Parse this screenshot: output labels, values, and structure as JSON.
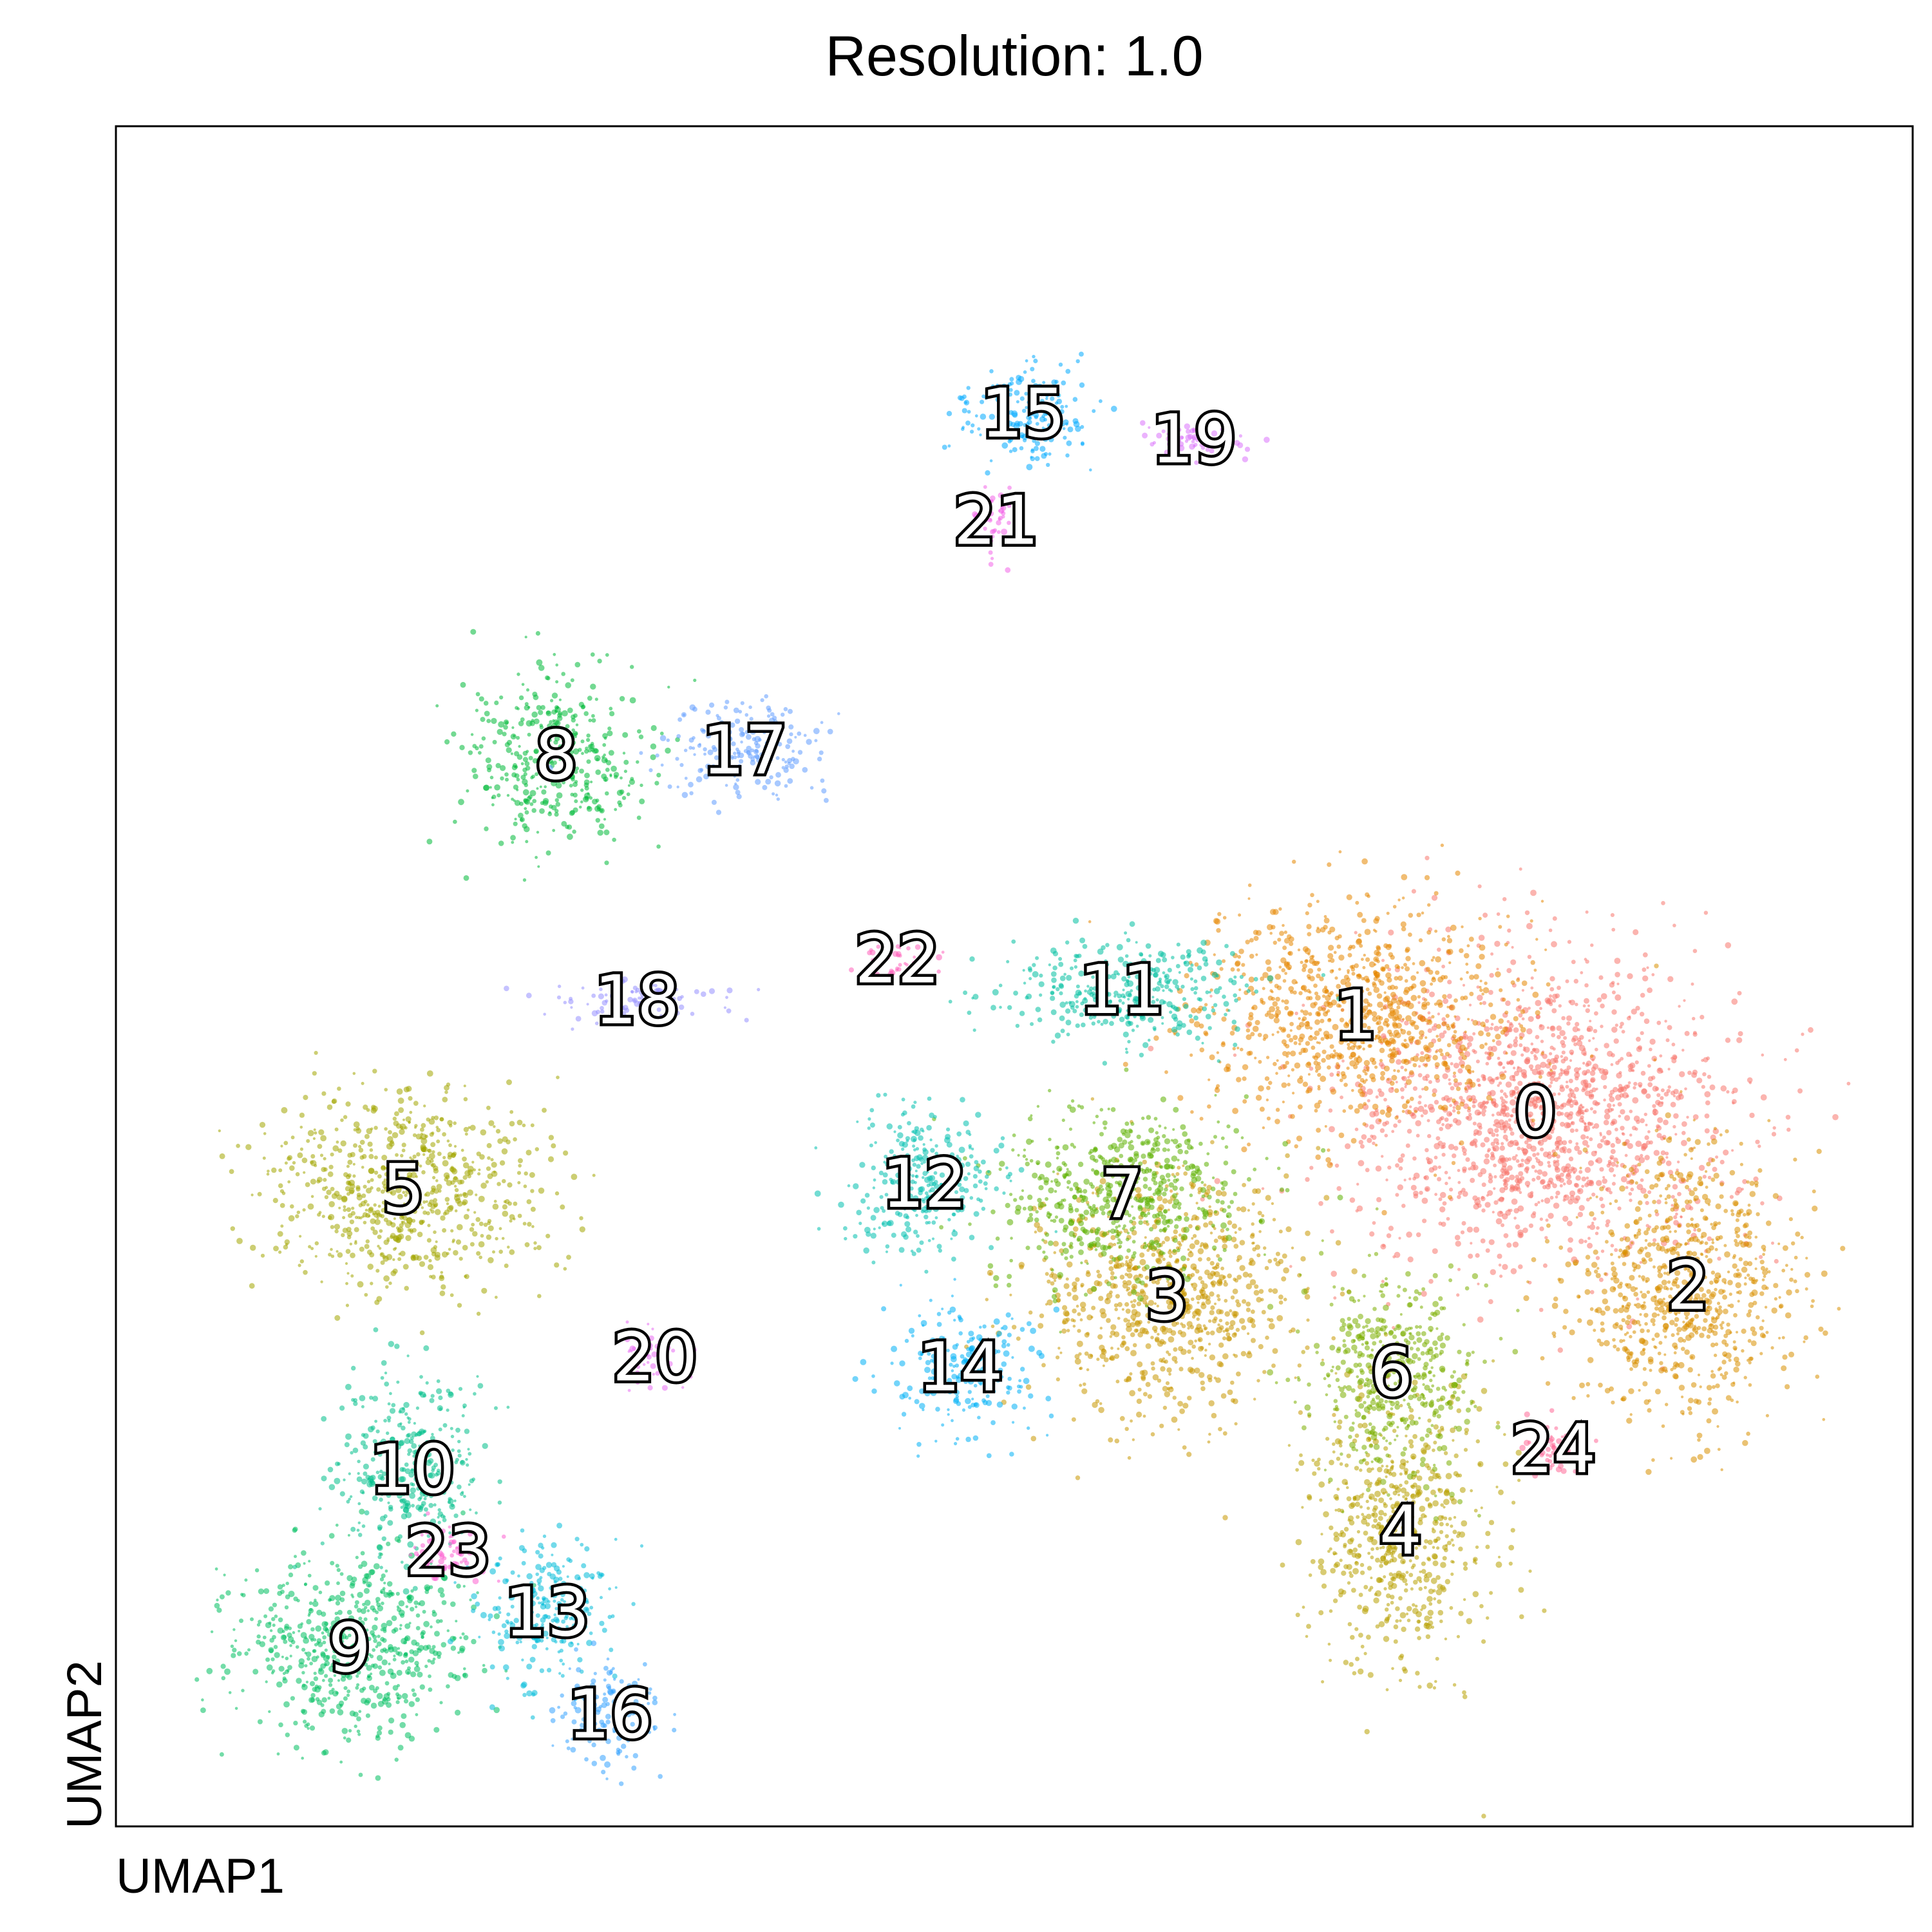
{
  "chart_data": {
    "type": "scatter",
    "title": "Resolution: 1.0",
    "xlabel": "UMAP1",
    "ylabel": "UMAP2",
    "xlim": [
      0,
      100
    ],
    "ylim": [
      0,
      100
    ],
    "grid": false,
    "legend": "on data",
    "clusters": [
      {
        "label": "0",
        "x": 79.0,
        "y": 70.0,
        "color": "#F8766D"
      },
      {
        "label": "1",
        "x": 69.0,
        "y": 79.5,
        "color": "#E58700"
      },
      {
        "label": "2",
        "x": 87.5,
        "y": 53.0,
        "color": "#D89000"
      },
      {
        "label": "3",
        "x": 58.5,
        "y": 52.0,
        "color": "#C99800"
      },
      {
        "label": "4",
        "x": 71.5,
        "y": 29.0,
        "color": "#B8A000"
      },
      {
        "label": "5",
        "x": 16.0,
        "y": 62.5,
        "color": "#A3A500"
      },
      {
        "label": "6",
        "x": 71.0,
        "y": 44.5,
        "color": "#7CAE00"
      },
      {
        "label": "7",
        "x": 56.0,
        "y": 62.0,
        "color": "#5DB000"
      },
      {
        "label": "8",
        "x": 24.5,
        "y": 105.0,
        "color": "#00BA38"
      },
      {
        "label": "9",
        "x": 13.0,
        "y": 17.5,
        "color": "#00BF60"
      },
      {
        "label": "10",
        "x": 16.5,
        "y": 35.0,
        "color": "#00C08B"
      },
      {
        "label": "11",
        "x": 56.0,
        "y": 82.0,
        "color": "#00BFA0"
      },
      {
        "label": "12",
        "x": 45.0,
        "y": 63.0,
        "color": "#00C0AF"
      },
      {
        "label": "13",
        "x": 24.0,
        "y": 21.0,
        "color": "#00BCD8"
      },
      {
        "label": "14",
        "x": 47.0,
        "y": 45.0,
        "color": "#00B0F6"
      },
      {
        "label": "15",
        "x": 50.5,
        "y": 138.5,
        "color": "#00A9FF"
      },
      {
        "label": "16",
        "x": 27.5,
        "y": 11.0,
        "color": "#35A2FF"
      },
      {
        "label": "17",
        "x": 35.0,
        "y": 105.5,
        "color": "#619CFF"
      },
      {
        "label": "18",
        "x": 29.0,
        "y": 81.0,
        "color": "#9590FF"
      },
      {
        "label": "19",
        "x": 60.0,
        "y": 136.0,
        "color": "#DB72FB"
      },
      {
        "label": "20",
        "x": 30.0,
        "y": 46.0,
        "color": "#E76BF3"
      },
      {
        "label": "21",
        "x": 49.0,
        "y": 128.0,
        "color": "#F265E7"
      },
      {
        "label": "22",
        "x": 43.5,
        "y": 85.0,
        "color": "#FF62BC"
      },
      {
        "label": "23",
        "x": 18.5,
        "y": 27.0,
        "color": "#FD61D1"
      },
      {
        "label": "24",
        "x": 80.0,
        "y": 37.0,
        "color": "#FF6A98"
      }
    ]
  }
}
